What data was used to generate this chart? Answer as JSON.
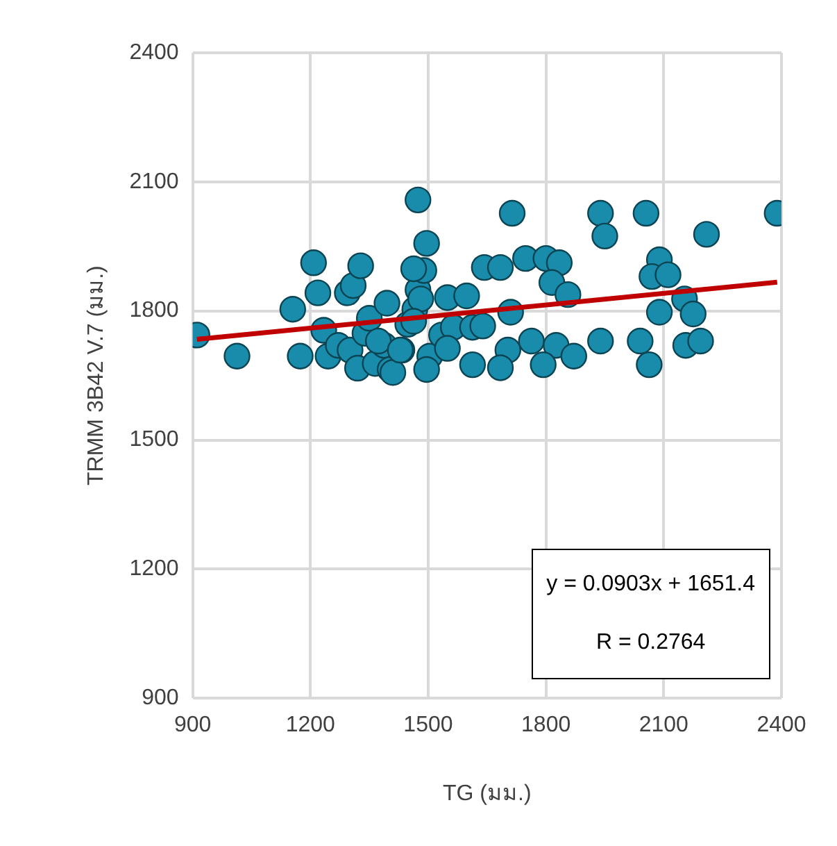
{
  "chart_data": {
    "type": "scatter",
    "xlabel": "TG (มม.)",
    "ylabel": "TRMM 3B42 V.7 (มม.)",
    "xlim": [
      900,
      2400
    ],
    "xticks": [
      900,
      1200,
      1500,
      1800,
      2100,
      2400
    ],
    "ylim": [
      900,
      2400
    ],
    "yticks": [
      900,
      1200,
      1500,
      1800,
      2100,
      2400
    ],
    "grid": true,
    "legend": false,
    "marker": "circle",
    "annotations": [
      "y = 0.0903x + 1651.4",
      "R = 0.2764"
    ],
    "series": [
      {
        "color": "#1a8cab",
        "x": [
          911,
          1013,
          1155,
          1174,
          1208,
          1219,
          1234,
          1245,
          1271,
          1294,
          1309,
          1301,
          1320,
          1328,
          1339,
          1350,
          1365,
          1395,
          1388,
          1403,
          1433,
          1448,
          1466,
          1474,
          1489,
          1474,
          1496,
          1463,
          1481,
          1549,
          1598,
          1643,
          1373,
          1410,
          1429,
          1463,
          1504,
          1496,
          1534,
          1564,
          1613,
          1613,
          1549,
          1714,
          1939,
          1950,
          2055,
          2209,
          2389,
          1684,
          1748,
          1800,
          1834,
          1815,
          1856,
          1710,
          1639,
          1703,
          1763,
          1826,
          1793,
          1871,
          1939,
          2040,
          2063,
          2089,
          2070,
          2111,
          2153,
          2175,
          2089,
          2156,
          2194,
          1684
        ],
        "values": [
          1744,
          1695,
          1804,
          1695,
          1912,
          1842,
          1755,
          1695,
          1720,
          1842,
          1859,
          1709,
          1667,
          1905,
          1748,
          1783,
          1678,
          1818,
          1720,
          1664,
          1709,
          1769,
          1804,
          1849,
          1894,
          2058,
          1957,
          1898,
          1828,
          1831,
          1835,
          1901,
          1730,
          1657,
          1709,
          1776,
          1695,
          1664,
          1744,
          1762,
          1762,
          1675,
          1713,
          2027,
          2027,
          1974,
          2027,
          1978,
          2027,
          1901,
          1922,
          1922,
          1912,
          1866,
          1838,
          1797,
          1765,
          1709,
          1730,
          1720,
          1675,
          1695,
          1730,
          1730,
          1675,
          1919,
          1880,
          1884,
          1828,
          1793,
          1797,
          1720,
          1730,
          1668
        ]
      },
      {
        "type": "line",
        "color": "#c00000",
        "x": [
          911,
          2389
        ],
        "values": [
          1734,
          1867
        ],
        "marker": "none",
        "line_style": "solid"
      }
    ]
  }
}
